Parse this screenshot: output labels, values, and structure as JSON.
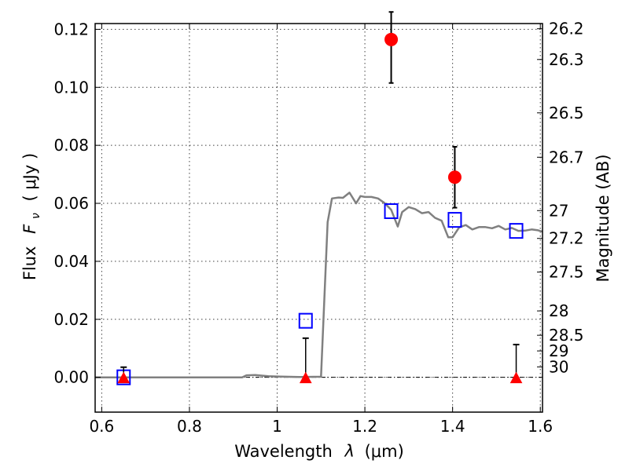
{
  "chart_data": {
    "type": "scatter",
    "xlabel_prefix": "Wavelength",
    "xlabel_symbol": "λ",
    "xlabel_unit": "(μm)",
    "ylabel_prefix": "Flux",
    "ylabel_symbol": "F",
    "ylabel_sub": "ν",
    "ylabel_unit": "( μJy )",
    "y2label": "Magnitude (AB)",
    "xlim": [
      0.585,
      1.605
    ],
    "ylim": [
      -0.012,
      0.122
    ],
    "grid": true,
    "x_ticks": [
      0.6,
      0.8,
      1.0,
      1.2,
      1.4,
      1.6
    ],
    "x_tick_labels": [
      "0.6",
      "0.8",
      "1",
      "1.2",
      "1.4",
      "1.6"
    ],
    "y_ticks": [
      0.0,
      0.02,
      0.04,
      0.06,
      0.08,
      0.1,
      0.12
    ],
    "y_tick_labels": [
      "0.00",
      "0.02",
      "0.04",
      "0.06",
      "0.08",
      "0.10",
      "0.12"
    ],
    "y2_ticks": [
      {
        "label": "26.2",
        "flux": 0.1202
      },
      {
        "label": "26.3",
        "flux": 0.1096
      },
      {
        "label": "26.5",
        "flux": 0.0912
      },
      {
        "label": "26.7",
        "flux": 0.0759
      },
      {
        "label": "27",
        "flux": 0.0575
      },
      {
        "label": "27.2",
        "flux": 0.0479
      },
      {
        "label": "27.5",
        "flux": 0.0363
      },
      {
        "label": "28",
        "flux": 0.0229
      },
      {
        "label": "28.5",
        "flux": 0.0145
      },
      {
        "label": "29",
        "flux": 0.0091
      },
      {
        "label": "30",
        "flux": 0.0036
      }
    ],
    "zero_line": 0.0,
    "series": [
      {
        "kind": "model-sed",
        "color": "#808080",
        "x": [
          0.585,
          0.7,
          0.8,
          0.92,
          0.93,
          0.95,
          0.98,
          1.0,
          1.05,
          1.1,
          1.115,
          1.125,
          1.14,
          1.15,
          1.165,
          1.18,
          1.19,
          1.2,
          1.215,
          1.23,
          1.245,
          1.26,
          1.275,
          1.285,
          1.3,
          1.315,
          1.33,
          1.345,
          1.36,
          1.375,
          1.39,
          1.4,
          1.415,
          1.43,
          1.445,
          1.46,
          1.475,
          1.49,
          1.505,
          1.52,
          1.535,
          1.55,
          1.565,
          1.58,
          1.595,
          1.605
        ],
        "y": [
          0.0,
          0.0,
          0.0,
          0.0,
          0.0007,
          0.0008,
          0.0004,
          0.0003,
          0.0001,
          0.0002,
          0.0535,
          0.0617,
          0.062,
          0.0619,
          0.0637,
          0.06,
          0.0625,
          0.0622,
          0.0622,
          0.0617,
          0.0601,
          0.0578,
          0.052,
          0.057,
          0.0587,
          0.058,
          0.0566,
          0.057,
          0.055,
          0.054,
          0.0483,
          0.0483,
          0.0517,
          0.0525,
          0.051,
          0.0518,
          0.0518,
          0.0514,
          0.0522,
          0.051,
          0.0515,
          0.0505,
          0.0506,
          0.051,
          0.0507,
          0.0502
        ]
      },
      {
        "kind": "model-band-flux",
        "color": "#0000ff",
        "marker": "open-square",
        "x": [
          0.65,
          1.065,
          1.26,
          1.405,
          1.545
        ],
        "y": [
          0.0,
          0.0195,
          0.0573,
          0.0543,
          0.0505
        ]
      },
      {
        "kind": "detections",
        "color": "#ff0000",
        "marker": "circle",
        "x": [
          1.26,
          1.405
        ],
        "y": [
          0.1165,
          0.069
        ],
        "yerr_low": [
          0.1015,
          0.0585
        ],
        "yerr_high": [
          0.126,
          0.0795
        ]
      },
      {
        "kind": "non-detections",
        "color": "#ff0000",
        "marker": "triangle",
        "x": [
          0.65,
          1.065,
          1.545
        ],
        "y": [
          0.0,
          0.0,
          0.0
        ],
        "yerr_low": [
          0.0,
          0.0,
          0.0
        ],
        "yerr_high": [
          0.0035,
          0.0135,
          0.0113
        ]
      }
    ]
  }
}
